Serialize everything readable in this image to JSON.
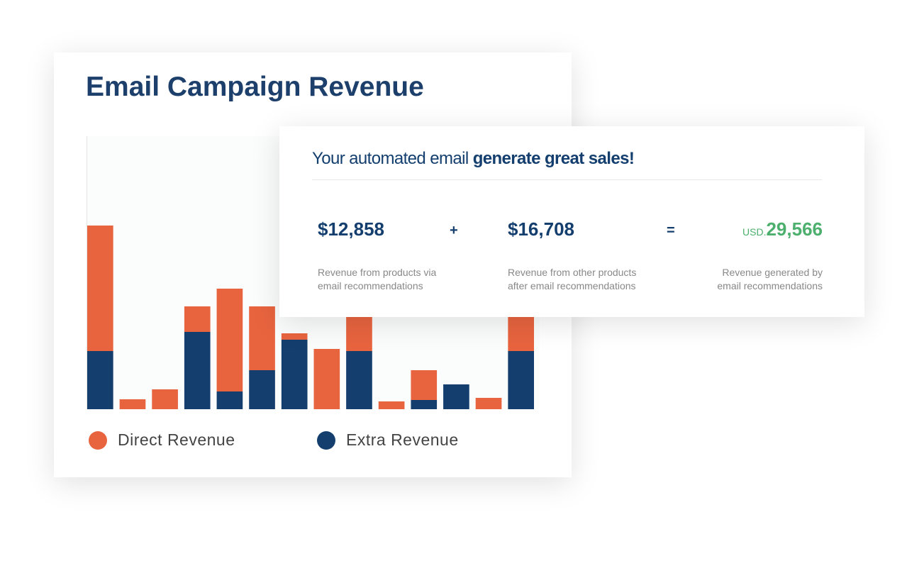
{
  "chart_data": {
    "type": "bar",
    "stacked": true,
    "title": "Email Campaign Revenue",
    "categories": [
      null,
      null,
      null,
      null,
      null,
      null,
      null,
      null,
      null,
      null,
      null,
      null,
      null,
      null
    ],
    "series": [
      {
        "name": "Direct Revenue",
        "color": "#e8643f",
        "values": [
          177,
          14,
          28,
          36,
          145,
          90,
          9,
          85,
          65,
          11,
          42,
          0,
          16,
          70
        ]
      },
      {
        "name": "Extra Revenue",
        "color": "#133e6e",
        "values": [
          82,
          0,
          0,
          109,
          25,
          55,
          98,
          0,
          82,
          0,
          13,
          35,
          0,
          82
        ]
      }
    ],
    "ylim": [
      0,
      385
    ]
  },
  "summary": {
    "headline": {
      "normal": "Your automated email",
      "bold": "generate great sales!"
    },
    "items": [
      {
        "amount": "$12,858",
        "description": [
          "Revenue from products via",
          "email recommendations"
        ]
      },
      {
        "amount": "$16,708",
        "description": [
          "Revenue from other products",
          "after email recommendations"
        ]
      },
      {
        "currency": "USD.",
        "amount": "29,566",
        "description": [
          "Revenue generated by",
          "email recommendations"
        ]
      }
    ],
    "operators": [
      "+",
      "="
    ]
  }
}
